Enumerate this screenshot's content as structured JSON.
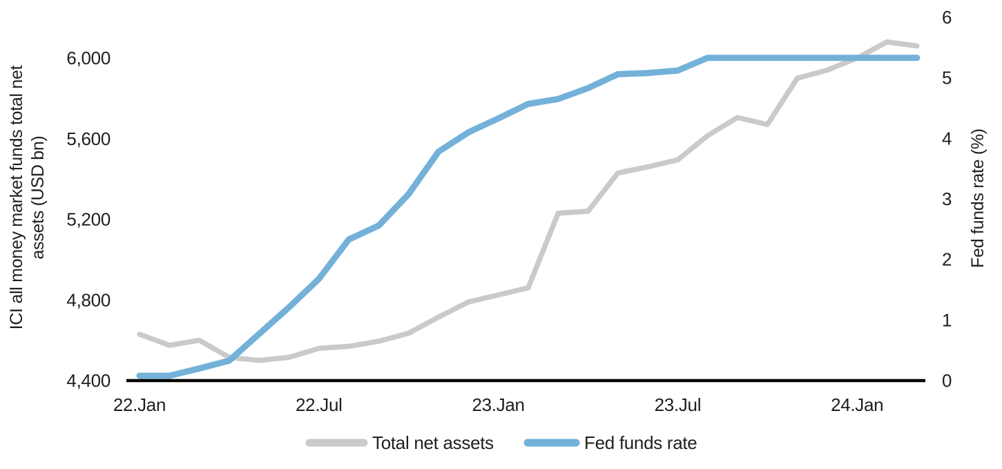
{
  "chart_data": {
    "type": "line",
    "x": [
      "22.Jan",
      "22.Feb",
      "22.Mar",
      "22.Apr",
      "22.May",
      "22.Jun",
      "22.Jul",
      "22.Aug",
      "22.Sep",
      "22.Oct",
      "22.Nov",
      "22.Dec",
      "23.Jan",
      "23.Feb",
      "23.Mar",
      "23.Apr",
      "23.May",
      "23.Jun",
      "23.Jul",
      "23.Aug",
      "23.Sep",
      "23.Oct",
      "23.Nov",
      "23.Dec",
      "24.Jan",
      "24.Feb",
      "24.Mar"
    ],
    "series": [
      {
        "name": "Total net assets",
        "axis": "left",
        "color": "#cacaca",
        "values": [
          4630,
          4575,
          4600,
          4515,
          4500,
          4515,
          4560,
          4570,
          4595,
          4635,
          4715,
          4790,
          4825,
          4860,
          5230,
          5240,
          5430,
          5460,
          5495,
          5615,
          5705,
          5670,
          5900,
          5940,
          6000,
          6080,
          6060
        ]
      },
      {
        "name": "Fed funds rate",
        "axis": "right",
        "color": "#73b1d9",
        "values": [
          0.08,
          0.08,
          0.2,
          0.33,
          0.77,
          1.21,
          1.68,
          2.33,
          2.56,
          3.08,
          3.78,
          4.1,
          4.33,
          4.57,
          4.65,
          4.83,
          5.06,
          5.08,
          5.12,
          5.33,
          5.33,
          5.33,
          5.33,
          5.33,
          5.33,
          5.33,
          5.33
        ]
      }
    ],
    "left_axis": {
      "label": "ICI all money market funds total net assets (USD bn)",
      "label_lines": [
        "ICI all money market funds total net",
        "assets (USD bn)"
      ],
      "ticks": [
        "4,400",
        "4,800",
        "5,200",
        "5,600",
        "6,000"
      ],
      "range": [
        4400,
        6000
      ]
    },
    "right_axis": {
      "label": "Fed funds rate (%)",
      "ticks": [
        "0",
        "1",
        "2",
        "3",
        "4",
        "5",
        "6"
      ],
      "range": [
        0,
        6
      ]
    },
    "x_ticks": [
      "22.Jan",
      "22.Jul",
      "23.Jan",
      "23.Jul",
      "24.Jan"
    ],
    "legend": {
      "position": "bottom"
    },
    "grid": false,
    "background": "#ffffff",
    "axis_line_color": "#000000"
  }
}
